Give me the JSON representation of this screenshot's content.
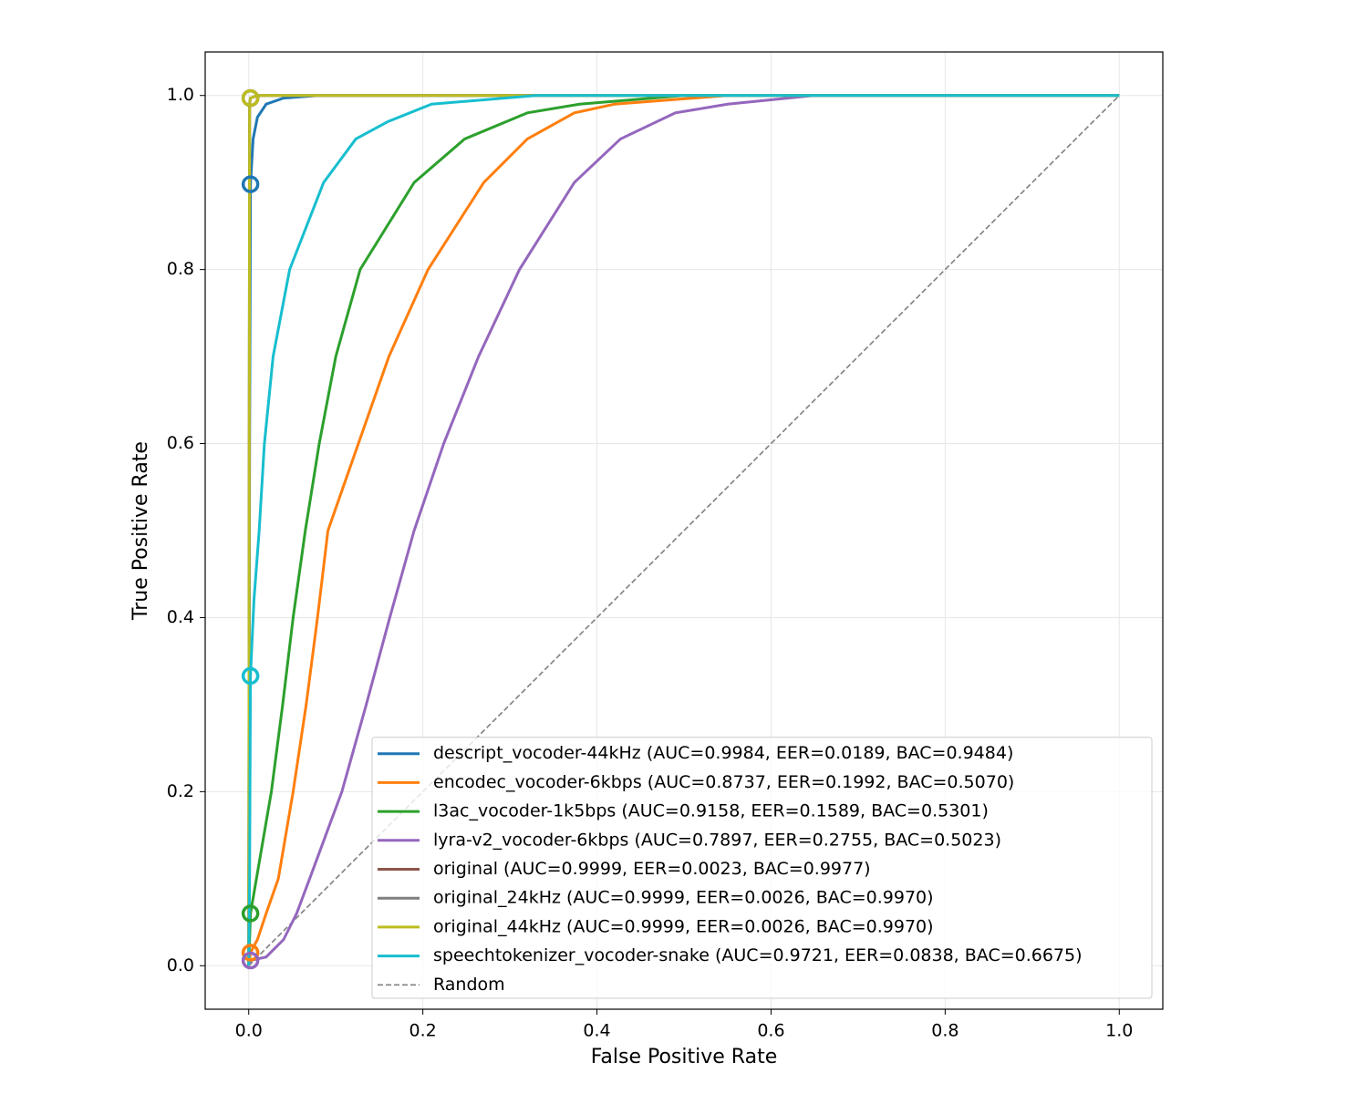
{
  "chart_data": {
    "type": "line",
    "xlabel": "False Positive Rate",
    "ylabel": "True Positive Rate",
    "xlim": [
      -0.05,
      1.05
    ],
    "ylim": [
      -0.05,
      1.05
    ],
    "xticks": [
      {
        "value": 0,
        "label": "0.0"
      },
      0.2,
      0.4,
      0.6,
      0.8,
      {
        "value": 1,
        "label": "1.0"
      }
    ],
    "yticks": [
      {
        "value": 0,
        "label": "0.0"
      },
      0.2,
      0.4,
      0.6,
      0.8,
      {
        "value": 1,
        "label": "1.0"
      }
    ],
    "grid": true,
    "legend": "lower right",
    "series": [
      {
        "name": "descript_vocoder-44kHz (AUC=0.9984, EER=0.0189, BAC=0.9484)",
        "color": "#1f77b4",
        "x": [
          0,
          0.001,
          0.002,
          0.005,
          0.01,
          0.02,
          0.04,
          0.08,
          1
        ],
        "values": [
          0,
          0.6,
          0.898,
          0.95,
          0.975,
          0.99,
          0.997,
          1,
          1
        ],
        "marker": {
          "x": 0.002,
          "y": 0.898
        }
      },
      {
        "name": "encodec_vocoder-6kbps (AUC=0.8737, EER=0.1992, BAC=0.5070)",
        "color": "#ff7f0e",
        "x": [
          0,
          0.002,
          0.01,
          0.02,
          0.034,
          0.051,
          0.066,
          0.079,
          0.091,
          0.126,
          0.161,
          0.206,
          0.27,
          0.32,
          0.374,
          0.42,
          0.55,
          1
        ],
        "values": [
          0,
          0.015,
          0.03,
          0.06,
          0.1,
          0.2,
          0.3,
          0.4,
          0.5,
          0.6,
          0.7,
          0.8,
          0.9,
          0.95,
          0.98,
          0.99,
          1,
          1
        ],
        "marker": {
          "x": 0.002,
          "y": 0.015
        }
      },
      {
        "name": "l3ac_vocoder-1k5bps (AUC=0.9158, EER=0.1589, BAC=0.5301)",
        "color": "#2ca02c",
        "x": [
          0,
          0.002,
          0.026,
          0.039,
          0.051,
          0.065,
          0.081,
          0.1,
          0.128,
          0.19,
          0.248,
          0.32,
          0.38,
          0.5,
          1
        ],
        "values": [
          0,
          0.06,
          0.2,
          0.3,
          0.4,
          0.5,
          0.6,
          0.7,
          0.8,
          0.9,
          0.95,
          0.98,
          0.99,
          1,
          1
        ],
        "marker": {
          "x": 0.002,
          "y": 0.06
        }
      },
      {
        "name": "lyra-v2_vocoder-6kbps (AUC=0.7897, EER=0.2755, BAC=0.5023)",
        "color": "#9467bd",
        "x": [
          0,
          0.002,
          0.02,
          0.04,
          0.055,
          0.07,
          0.107,
          0.135,
          0.162,
          0.19,
          0.224,
          0.264,
          0.311,
          0.374,
          0.427,
          0.49,
          0.55,
          0.65,
          1
        ],
        "values": [
          0,
          0.006,
          0.01,
          0.03,
          0.06,
          0.1,
          0.2,
          0.3,
          0.4,
          0.5,
          0.6,
          0.7,
          0.8,
          0.9,
          0.95,
          0.98,
          0.99,
          1,
          1
        ],
        "marker": {
          "x": 0.002,
          "y": 0.006
        }
      },
      {
        "name": "original (AUC=0.9999, EER=0.0023, BAC=0.9977)",
        "color": "#8c564b",
        "x": [
          0,
          0.001,
          0.002,
          0.01,
          1
        ],
        "values": [
          0,
          0.99,
          0.997,
          1,
          1
        ],
        "marker": {
          "x": 0.002,
          "y": 0.997
        }
      },
      {
        "name": "original_24kHz (AUC=0.9999, EER=0.0026, BAC=0.9970)",
        "color": "#7f7f7f",
        "x": [
          0,
          0.001,
          0.002,
          0.01,
          1
        ],
        "values": [
          0,
          0.99,
          0.997,
          1,
          1
        ],
        "marker": {
          "x": 0.002,
          "y": 0.997
        }
      },
      {
        "name": "original_44kHz (AUC=0.9999, EER=0.0026, BAC=0.9970)",
        "color": "#bcbd22",
        "x": [
          0,
          0.001,
          0.002,
          0.01,
          1
        ],
        "values": [
          0,
          0.99,
          0.997,
          1,
          1
        ],
        "marker": {
          "x": 0.002,
          "y": 0.997
        }
      },
      {
        "name": "speechtokenizer_vocoder-snake (AUC=0.9721, EER=0.0838, BAC=0.6675)",
        "color": "#17becf",
        "x": [
          0,
          0.001,
          0.002,
          0.006,
          0.012,
          0.018,
          0.028,
          0.047,
          0.086,
          0.123,
          0.16,
          0.21,
          0.33,
          1
        ],
        "values": [
          0,
          0.1,
          0.333,
          0.42,
          0.5,
          0.6,
          0.7,
          0.8,
          0.9,
          0.95,
          0.97,
          0.99,
          1,
          1
        ],
        "marker": {
          "x": 0.002,
          "y": 0.333
        }
      },
      {
        "name": "Random",
        "color": "#808080",
        "dashed": true,
        "x": [
          0,
          1
        ],
        "values": [
          0,
          1
        ]
      }
    ]
  }
}
